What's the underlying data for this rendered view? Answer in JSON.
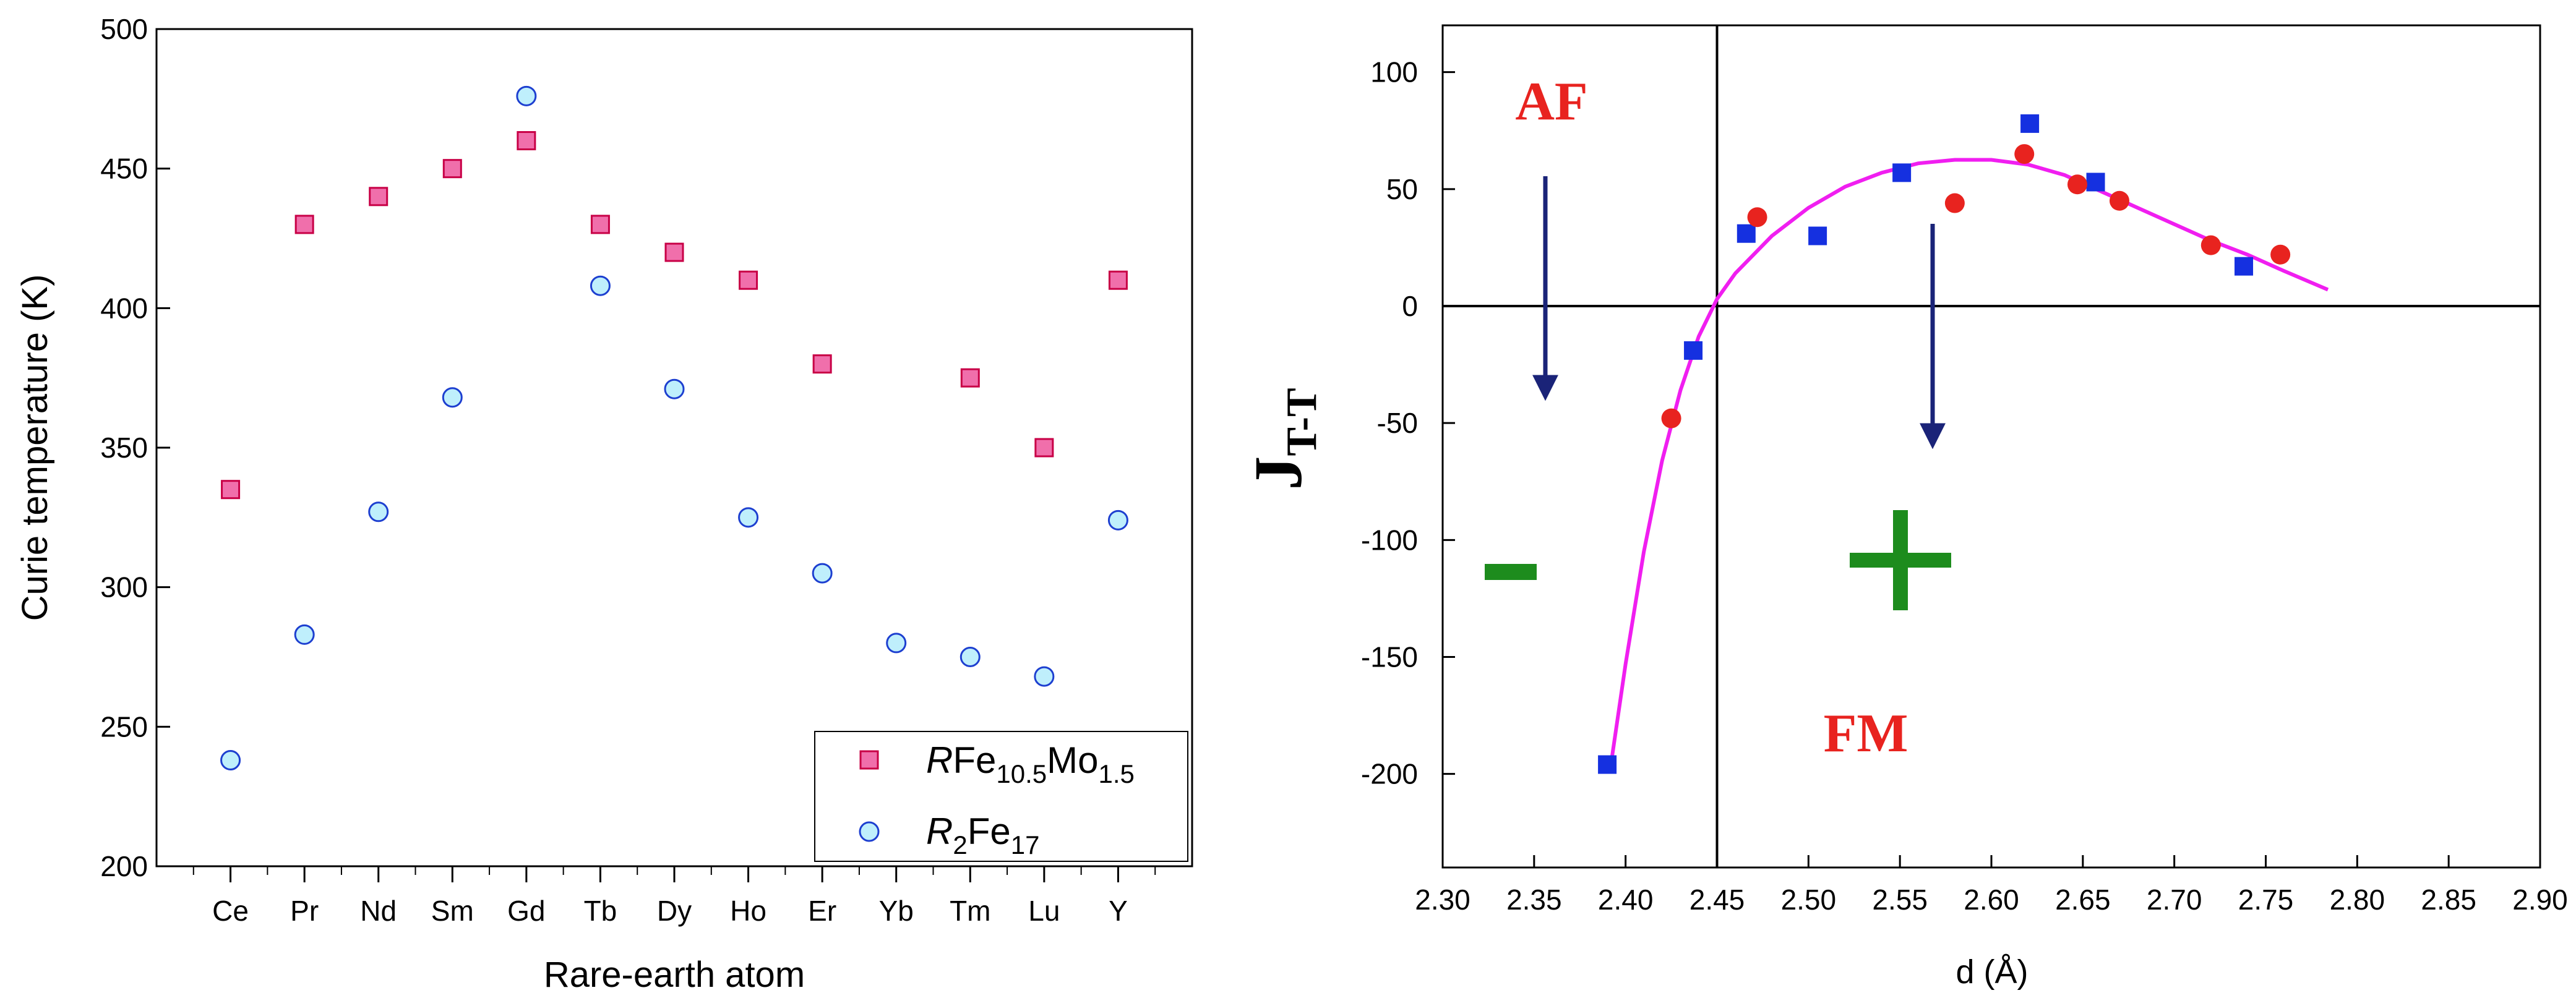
{
  "chart_data": [
    {
      "type": "scatter",
      "xlabel": "Rare-earth atom",
      "ylabel": "Curie temperature (K)",
      "ylim": [
        200,
        500
      ],
      "yticks": [
        200,
        250,
        300,
        350,
        400,
        450,
        500
      ],
      "categories": [
        "Ce",
        "Pr",
        "Nd",
        "Sm",
        "Gd",
        "Tb",
        "Dy",
        "Ho",
        "Er",
        "Yb",
        "Tm",
        "Lu",
        "Y"
      ],
      "legend_position": "bottom-right",
      "series": [
        {
          "name": "RFe10.5Mo1.5",
          "legend": {
            "italic": "R",
            "parts": [
              [
                "Fe",
                ""
              ],
              [
                "10.5",
                "sub"
              ],
              [
                "Mo",
                ""
              ],
              [
                "1.5",
                "sub"
              ]
            ]
          },
          "marker": "square",
          "color": "#f06fab",
          "values": [
            335,
            430,
            440,
            450,
            460,
            430,
            420,
            410,
            380,
            null,
            375,
            350,
            410
          ]
        },
        {
          "name": "R2Fe17",
          "legend": {
            "italic": "R",
            "parts": [
              [
                "2",
                "sub"
              ],
              [
                "Fe",
                ""
              ],
              [
                "17",
                "sub"
              ]
            ]
          },
          "marker": "circle",
          "color": "#bfeffc",
          "values": [
            238,
            283,
            327,
            368,
            476,
            408,
            371,
            325,
            305,
            280,
            275,
            268,
            324
          ]
        }
      ]
    },
    {
      "type": "scatter",
      "xlabel": "d (Å)",
      "ylabel": "J",
      "ylabel_sub": "T-T",
      "xlim": [
        2.3,
        2.9
      ],
      "ylim": [
        -240,
        120
      ],
      "xticks": [
        "2.30",
        "2.35",
        "2.40",
        "2.45",
        "2.50",
        "2.55",
        "2.60",
        "2.65",
        "2.70",
        "2.75",
        "2.80",
        "2.85",
        "2.90"
      ],
      "yticks": [
        "100",
        "50",
        "0",
        "-50",
        "-100",
        "-150",
        "-200"
      ],
      "vline_x": 2.45,
      "hline_y": 0,
      "annotations": {
        "af": "AF",
        "fm": "FM",
        "minus": "-",
        "plus": "+"
      },
      "arrow_color": "#1a2378",
      "sign_color": "#1d8c1d",
      "series": [
        {
          "name": "blue squares",
          "marker": "square",
          "color": "#1530e0",
          "points": [
            [
              2.39,
              -196
            ],
            [
              2.437,
              -19
            ],
            [
              2.466,
              31
            ],
            [
              2.505,
              30
            ],
            [
              2.551,
              57
            ],
            [
              2.621,
              78
            ],
            [
              2.657,
              53
            ],
            [
              2.738,
              17
            ]
          ]
        },
        {
          "name": "red circles",
          "marker": "circle",
          "color": "#e8231f",
          "points": [
            [
              2.425,
              -48
            ],
            [
              2.472,
              38
            ],
            [
              2.58,
              44
            ],
            [
              2.618,
              65
            ],
            [
              2.647,
              52
            ],
            [
              2.67,
              45
            ],
            [
              2.72,
              26
            ],
            [
              2.758,
              22
            ]
          ]
        },
        {
          "name": "fit",
          "type": "line",
          "color": "#f01ef0",
          "points": [
            [
              2.392,
              -196
            ],
            [
              2.4,
              -153
            ],
            [
              2.41,
              -105
            ],
            [
              2.42,
              -66
            ],
            [
              2.43,
              -36
            ],
            [
              2.44,
              -13
            ],
            [
              2.45,
              3
            ],
            [
              2.46,
              14
            ],
            [
              2.48,
              30
            ],
            [
              2.5,
              42
            ],
            [
              2.52,
              51
            ],
            [
              2.54,
              57
            ],
            [
              2.56,
              61
            ],
            [
              2.58,
              62.5
            ],
            [
              2.6,
              62.5
            ],
            [
              2.62,
              60.5
            ],
            [
              2.64,
              56
            ],
            [
              2.66,
              49
            ],
            [
              2.68,
              42
            ],
            [
              2.7,
              35
            ],
            [
              2.72,
              28
            ],
            [
              2.74,
              22
            ],
            [
              2.76,
              15
            ],
            [
              2.784,
              7
            ]
          ]
        }
      ]
    }
  ]
}
